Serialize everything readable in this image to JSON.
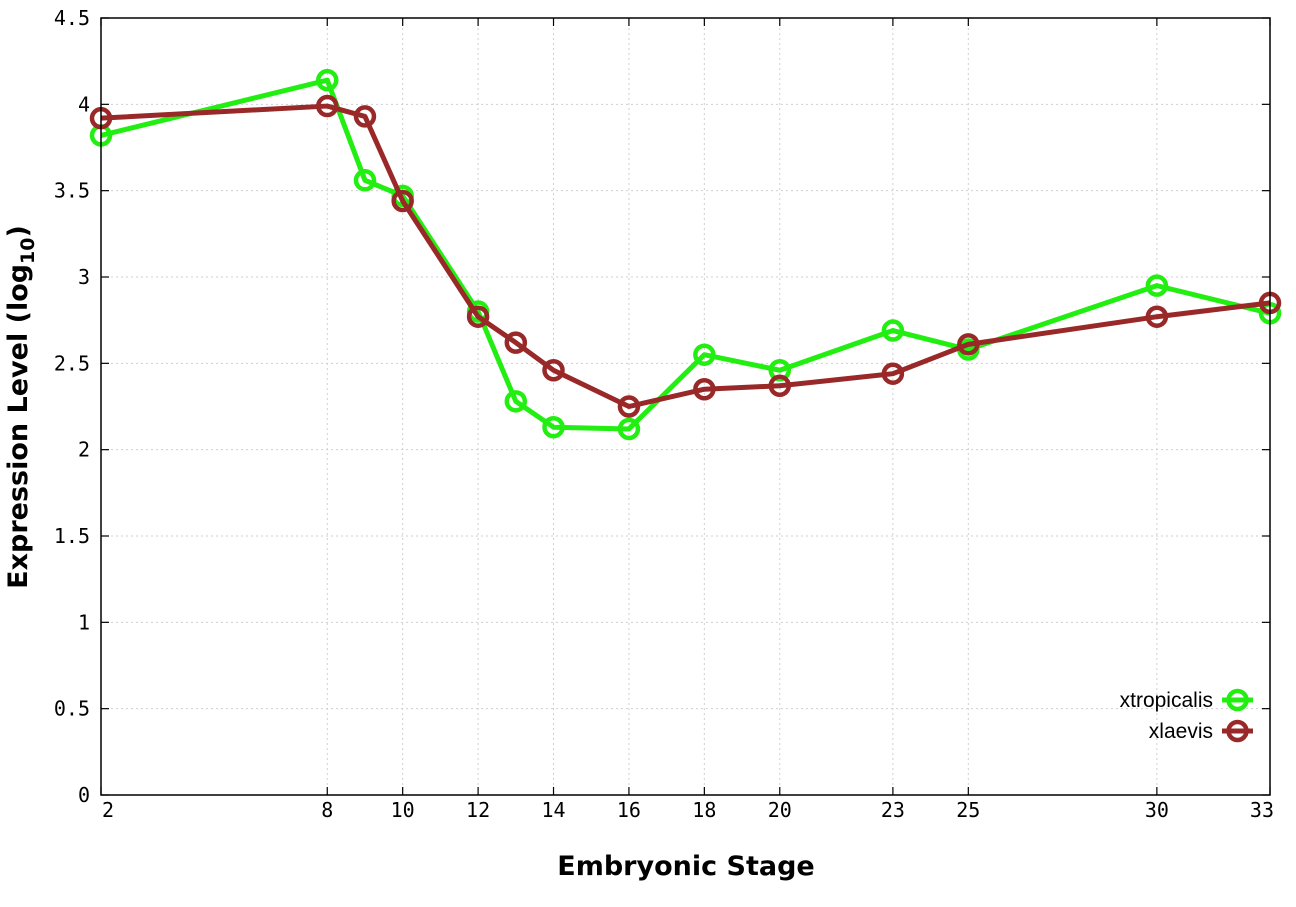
{
  "chart_data": {
    "type": "line",
    "title": "",
    "xlabel": "Embryonic Stage",
    "ylabel": {
      "text": "Expression Level (log",
      "sub": "10",
      "close": ")"
    },
    "xlim": [
      2,
      33
    ],
    "ylim": [
      0,
      4.5
    ],
    "x_ticks": [
      2,
      8,
      10,
      12,
      14,
      16,
      18,
      20,
      23,
      25,
      30,
      33
    ],
    "y_ticks": [
      0,
      0.5,
      1,
      1.5,
      2,
      2.5,
      3,
      3.5,
      4,
      4.5
    ],
    "y_tick_labels": [
      "0",
      "0.5",
      "1",
      "1.5",
      "2",
      "2.5",
      "3",
      "3.5",
      "4",
      "4.5"
    ],
    "grid": true,
    "legend_position": "bottom-right",
    "series": [
      {
        "name": "xtropicalis",
        "color": "#22ee11",
        "points": [
          {
            "x": 2,
            "y": 3.82
          },
          {
            "x": 8,
            "y": 4.14
          },
          {
            "x": 9,
            "y": 3.56
          },
          {
            "x": 10,
            "y": 3.47
          },
          {
            "x": 12,
            "y": 2.8
          },
          {
            "x": 13,
            "y": 2.28
          },
          {
            "x": 14,
            "y": 2.13
          },
          {
            "x": 16,
            "y": 2.12
          },
          {
            "x": 18,
            "y": 2.55
          },
          {
            "x": 20,
            "y": 2.46
          },
          {
            "x": 23,
            "y": 2.69
          },
          {
            "x": 25,
            "y": 2.58
          },
          {
            "x": 30,
            "y": 2.95
          },
          {
            "x": 33,
            "y": 2.79
          }
        ]
      },
      {
        "name": "xlaevis",
        "color": "#992929",
        "points": [
          {
            "x": 2,
            "y": 3.92
          },
          {
            "x": 8,
            "y": 3.99
          },
          {
            "x": 9,
            "y": 3.93
          },
          {
            "x": 10,
            "y": 3.44
          },
          {
            "x": 12,
            "y": 2.77
          },
          {
            "x": 13,
            "y": 2.62
          },
          {
            "x": 14,
            "y": 2.46
          },
          {
            "x": 16,
            "y": 2.25
          },
          {
            "x": 18,
            "y": 2.35
          },
          {
            "x": 20,
            "y": 2.37
          },
          {
            "x": 23,
            "y": 2.44
          },
          {
            "x": 25,
            "y": 2.61
          },
          {
            "x": 30,
            "y": 2.77
          },
          {
            "x": 33,
            "y": 2.85
          }
        ]
      }
    ]
  }
}
